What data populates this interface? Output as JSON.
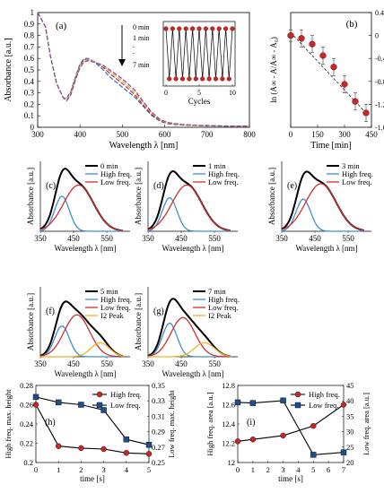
{
  "chart_data": [
    {
      "id": "a",
      "type": "line",
      "panel_label": "(a)",
      "xlabel": "Wavelength λ [nm]",
      "ylabel": "Absorbance [a.u.]",
      "xlim": [
        300,
        800
      ],
      "ylim": [
        0,
        1
      ],
      "xticks": [
        300,
        400,
        500,
        600,
        700,
        800
      ],
      "yticks": [
        0,
        0.1,
        0.2,
        0.3,
        0.4,
        0.5,
        0.6,
        0.7,
        0.8,
        0.9,
        1
      ],
      "annotations": [
        "0 min",
        "1 min",
        ".",
        ".",
        "7 min"
      ],
      "series": [
        {
          "color": "#2e6db4",
          "x": [
            300,
            318,
            330,
            345,
            360,
            368,
            378,
            390,
            400,
            410,
            420,
            430,
            440,
            455,
            470,
            490,
            510,
            530,
            550,
            570,
            590,
            610,
            640,
            680,
            720,
            760,
            800
          ],
          "y": [
            1.0,
            0.88,
            0.62,
            0.38,
            0.26,
            0.25,
            0.31,
            0.45,
            0.55,
            0.6,
            0.6,
            0.58,
            0.55,
            0.5,
            0.44,
            0.38,
            0.32,
            0.26,
            0.18,
            0.1,
            0.05,
            0.03,
            0.02,
            0.015,
            0.012,
            0.01,
            0.01
          ]
        },
        {
          "color": "#c0392b",
          "x": [
            300,
            318,
            330,
            345,
            360,
            368,
            378,
            390,
            400,
            410,
            420,
            430,
            440,
            455,
            470,
            490,
            510,
            530,
            550,
            570,
            590,
            610,
            640,
            680,
            720,
            760,
            800
          ],
          "y": [
            1.0,
            0.88,
            0.62,
            0.38,
            0.26,
            0.24,
            0.3,
            0.44,
            0.54,
            0.59,
            0.59,
            0.58,
            0.56,
            0.52,
            0.47,
            0.41,
            0.35,
            0.28,
            0.19,
            0.11,
            0.055,
            0.03,
            0.02,
            0.015,
            0.012,
            0.01,
            0.01
          ]
        },
        {
          "color": "#e8a33d",
          "x": [
            300,
            318,
            330,
            345,
            360,
            368,
            378,
            390,
            400,
            410,
            420,
            430,
            440,
            455,
            470,
            490,
            510,
            530,
            550,
            570,
            590,
            610,
            640,
            680,
            720,
            760,
            800
          ],
          "y": [
            1.0,
            0.88,
            0.62,
            0.38,
            0.26,
            0.24,
            0.29,
            0.43,
            0.53,
            0.58,
            0.59,
            0.58,
            0.56,
            0.53,
            0.49,
            0.43,
            0.37,
            0.3,
            0.21,
            0.12,
            0.06,
            0.035,
            0.022,
            0.015,
            0.012,
            0.01,
            0.01
          ]
        },
        {
          "color": "#7b4ea8",
          "x": [
            300,
            318,
            330,
            345,
            360,
            368,
            378,
            390,
            400,
            410,
            420,
            430,
            440,
            455,
            470,
            490,
            510,
            530,
            550,
            570,
            590,
            610,
            640,
            680,
            720,
            760,
            800
          ],
          "y": [
            1.0,
            0.88,
            0.62,
            0.38,
            0.26,
            0.23,
            0.28,
            0.42,
            0.52,
            0.57,
            0.58,
            0.57,
            0.56,
            0.54,
            0.5,
            0.45,
            0.39,
            0.32,
            0.22,
            0.13,
            0.065,
            0.04,
            0.025,
            0.017,
            0.013,
            0.01,
            0.01
          ]
        }
      ],
      "inset": {
        "xlabel": "Cycles",
        "xlim": [
          0,
          10
        ],
        "xticks": [
          0,
          5,
          10
        ],
        "x": [
          0,
          0.5,
          1,
          1.5,
          2,
          2.5,
          3,
          3.5,
          4,
          4.5,
          5,
          5.5,
          6,
          6.5,
          7,
          7.5,
          8,
          8.5,
          9,
          9.5,
          10
        ],
        "y": [
          1,
          0,
          1,
          0,
          1,
          0,
          1,
          0,
          1,
          0,
          1,
          0,
          1,
          0,
          1,
          0,
          1,
          0,
          1,
          0,
          1
        ]
      }
    },
    {
      "id": "b",
      "type": "scatter",
      "panel_label": "(b)",
      "xlabel": "Time [min]",
      "ylabel": "ln (A∞ - A/A∞ - A₀)",
      "xlim": [
        0,
        450
      ],
      "ylim": [
        -1.6,
        0.4
      ],
      "xticks": [
        0,
        150,
        300,
        450
      ],
      "yticks": [
        0.4,
        0,
        -0.4,
        -0.8,
        -1.2,
        -1.6
      ],
      "xticklabels": [
        "0",
        "150",
        "300",
        "450"
      ],
      "yticklabels": [
        "0.4",
        "0",
        "-0.4",
        "-0.8",
        "-1.2",
        "-1.6"
      ],
      "x": [
        0,
        60,
        120,
        180,
        240,
        300,
        360,
        420
      ],
      "y": [
        0.0,
        -0.05,
        -0.15,
        -0.35,
        -0.55,
        -0.85,
        -1.15,
        -1.35
      ],
      "err": [
        0.1,
        0.15,
        0.15,
        0.15,
        0.15,
        0.15,
        0.15,
        0.15
      ],
      "trend": {
        "x": [
          0,
          420
        ],
        "y": [
          0.05,
          -1.35
        ]
      }
    },
    {
      "id": "c",
      "type": "area",
      "panel_label": "(c)",
      "xlabel": "Wavelength λ [nm]",
      "ylabel": "Absorbance [a.u.]",
      "xlim": [
        350,
        620
      ],
      "ylim": [
        0,
        0.5
      ],
      "xticks": [
        350,
        450,
        550
      ],
      "legend": [
        "0 min",
        "High freq.",
        "Low freq."
      ],
      "gaussians": [
        {
          "name": "High freq.",
          "color": "#3f8fd2",
          "amp": 0.25,
          "center": 415,
          "sigma": 22
        },
        {
          "name": "Low freq.",
          "color": "#d0312d",
          "amp": 0.33,
          "center": 465,
          "sigma": 45
        }
      ]
    },
    {
      "id": "d",
      "type": "area",
      "panel_label": "(d)",
      "xlabel": "Wavelength λ [nm]",
      "ylabel": "Absorbance [a.u.]",
      "xlim": [
        350,
        620
      ],
      "ylim": [
        0,
        0.5
      ],
      "xticks": [
        350,
        450,
        550
      ],
      "legend": [
        "1 min",
        "High freq.",
        "Low freq."
      ],
      "gaussians": [
        {
          "name": "High freq.",
          "color": "#3f8fd2",
          "amp": 0.24,
          "center": 415,
          "sigma": 22
        },
        {
          "name": "Low freq.",
          "color": "#d0312d",
          "amp": 0.33,
          "center": 467,
          "sigma": 45
        }
      ]
    },
    {
      "id": "e",
      "type": "area",
      "panel_label": "(e)",
      "xlabel": "Wavelength λ [nm]",
      "ylabel": "Absorbance [a.u.]",
      "xlim": [
        350,
        620
      ],
      "ylim": [
        0,
        0.5
      ],
      "xticks": [
        350,
        450,
        550
      ],
      "legend": [
        "3 min",
        "High freq.",
        "Low freq."
      ],
      "gaussians": [
        {
          "name": "High freq.",
          "color": "#3f8fd2",
          "amp": 0.23,
          "center": 415,
          "sigma": 22
        },
        {
          "name": "Low freq.",
          "color": "#d0312d",
          "amp": 0.34,
          "center": 468,
          "sigma": 46
        }
      ]
    },
    {
      "id": "f",
      "type": "area",
      "panel_label": "(f)",
      "xlabel": "Wavelength λ [nm]",
      "ylabel": "Absorbance [a.u.]",
      "xlim": [
        350,
        620
      ],
      "ylim": [
        0,
        0.5
      ],
      "xticks": [
        350,
        450,
        550
      ],
      "legend": [
        "5 min",
        "High freq.",
        "Low freq.",
        "I2 Peak"
      ],
      "gaussians": [
        {
          "name": "High freq.",
          "color": "#3f8fd2",
          "amp": 0.22,
          "center": 415,
          "sigma": 22
        },
        {
          "name": "Low freq.",
          "color": "#d0312d",
          "amp": 0.3,
          "center": 460,
          "sigma": 38
        },
        {
          "name": "I2 Peak",
          "color": "#f0b429",
          "amp": 0.1,
          "center": 530,
          "sigma": 28
        }
      ]
    },
    {
      "id": "g",
      "type": "area",
      "panel_label": "(g)",
      "xlabel": "Wavelength λ [nm]",
      "ylabel": "Absorbance [a.u.]",
      "xlim": [
        350,
        620
      ],
      "ylim": [
        0,
        0.5
      ],
      "xticks": [
        350,
        450,
        550
      ],
      "legend": [
        "7 min",
        "High freq.",
        "Low freq.",
        "I2 Peak"
      ],
      "gaussians": [
        {
          "name": "High freq.",
          "color": "#3f8fd2",
          "amp": 0.24,
          "center": 415,
          "sigma": 22
        },
        {
          "name": "Low freq.",
          "color": "#d0312d",
          "amp": 0.28,
          "center": 455,
          "sigma": 36
        },
        {
          "name": "I2 Peak",
          "color": "#f0b429",
          "amp": 0.1,
          "center": 520,
          "sigma": 30
        }
      ]
    },
    {
      "id": "h",
      "type": "line",
      "panel_label": "(h)",
      "xlabel": "time [s]",
      "ylabel": "High freq. max. height",
      "ylabel2": "Low freq. max. height",
      "xlim": [
        0,
        5
      ],
      "xticks": [
        0,
        1,
        2,
        3,
        4,
        5
      ],
      "ylim": [
        0.2,
        0.28
      ],
      "yticks": [
        0.2,
        0.22,
        0.24,
        0.26,
        0.28
      ],
      "ylim2": [
        0.25,
        0.35
      ],
      "yticks2": [
        0.25,
        0.27,
        0.29,
        0.31,
        0.33,
        0.35
      ],
      "series": [
        {
          "name": "High freq.",
          "axis": "left",
          "color": "#c62828",
          "marker": "circle",
          "x": [
            0,
            1,
            2,
            3,
            4,
            5
          ],
          "y": [
            0.26,
            0.217,
            0.215,
            0.214,
            0.21,
            0.209
          ]
        },
        {
          "name": "Low freq.",
          "axis": "right",
          "color": "#1f4e8c",
          "marker": "square",
          "x": [
            0,
            1,
            2,
            3,
            4,
            5
          ],
          "y": [
            0.335,
            0.328,
            0.325,
            0.318,
            0.28,
            0.273
          ]
        }
      ]
    },
    {
      "id": "i",
      "type": "line",
      "panel_label": "(i)",
      "xlabel": "time [s]",
      "ylabel": "High freq. area [a.u.]",
      "ylabel2": "Low freq. area [a.u.]",
      "xlim": [
        0,
        7
      ],
      "xticks": [
        0,
        1,
        2,
        3,
        4,
        5,
        6,
        7
      ],
      "ylim": [
        12,
        12.8
      ],
      "yticks": [
        12,
        12.2,
        12.4,
        12.6,
        12.8
      ],
      "ylim2": [
        20,
        45
      ],
      "yticks2": [
        20,
        25,
        30,
        35,
        40,
        45
      ],
      "series": [
        {
          "name": "High freq.",
          "axis": "left",
          "color": "#c62828",
          "marker": "circle",
          "x": [
            0,
            1,
            3,
            5,
            7
          ],
          "y": [
            12.22,
            12.24,
            12.28,
            12.38,
            12.6
          ]
        },
        {
          "name": "Low freq.",
          "axis": "right",
          "color": "#1f4e8c",
          "marker": "square",
          "x": [
            0,
            1,
            3,
            5,
            7
          ],
          "y": [
            39.5,
            39.3,
            40.1,
            22.5,
            23.3
          ]
        }
      ]
    }
  ]
}
